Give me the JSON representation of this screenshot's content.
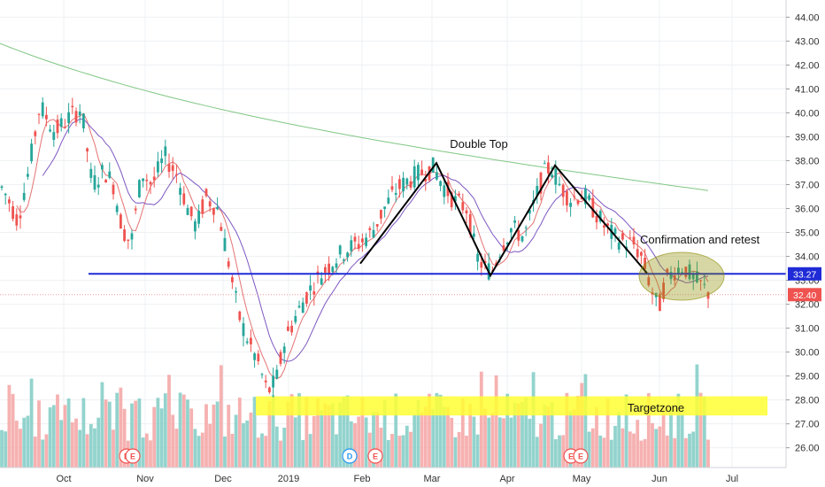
{
  "chart_data": {
    "type": "candlestick",
    "y_axis": {
      "position": "right",
      "ylim": [
        25.2,
        44.7
      ],
      "ticks": [
        "26.00",
        "27.00",
        "28.00",
        "29.00",
        "30.00",
        "31.00",
        "32.00",
        "33.00",
        "34.00",
        "35.00",
        "36.00",
        "37.00",
        "38.00",
        "39.00",
        "40.00",
        "41.00",
        "42.00",
        "43.00",
        "44.00"
      ]
    },
    "x_axis": {
      "tick_labels": [
        "Oct",
        "Nov",
        "Dec",
        "2019",
        "Feb",
        "Mar",
        "Apr",
        "May",
        "Jun",
        "Jul"
      ]
    },
    "price_tags": [
      {
        "value": 33.27,
        "label": "33.27",
        "color": "#1f2bd6"
      },
      {
        "value": 32.4,
        "label": "32.40",
        "color": "#ef5350"
      }
    ],
    "support_line": {
      "value": 33.27,
      "color": "#1f2bd6"
    },
    "last_price_line": {
      "value": 32.4,
      "color": "#ef9a9a"
    },
    "annotations": [
      {
        "text": "Double Top"
      },
      {
        "text": "Confirmation and retest"
      },
      {
        "text": "Targetzone",
        "zone": [
          27.35,
          28.15
        ],
        "color": "#ffff33"
      }
    ],
    "pattern_points": [
      {
        "label": "start",
        "value": 33.7
      },
      {
        "label": "top-1",
        "value": 37.9
      },
      {
        "label": "neckline",
        "value": 33.2
      },
      {
        "label": "top-2",
        "value": 37.8
      },
      {
        "label": "break",
        "value": 33.3
      }
    ],
    "events": [
      {
        "letter": "E",
        "month": "Oct-Nov"
      },
      {
        "letter": "E",
        "month": "Oct-Nov"
      },
      {
        "letter": "D",
        "month": "Jan-Feb"
      },
      {
        "letter": "E",
        "month": "Feb"
      },
      {
        "letter": "E",
        "month": "Apr-May"
      },
      {
        "letter": "E",
        "month": "Apr-May"
      }
    ],
    "colors": {
      "up": "#26a69a",
      "down": "#ef5350",
      "ma_fast": "#e57373",
      "ma_mid": "#7e57c2",
      "ma_slow": "#81c784",
      "volume_up": "#80cbc4",
      "volume_down": "#f4a3a3"
    }
  }
}
